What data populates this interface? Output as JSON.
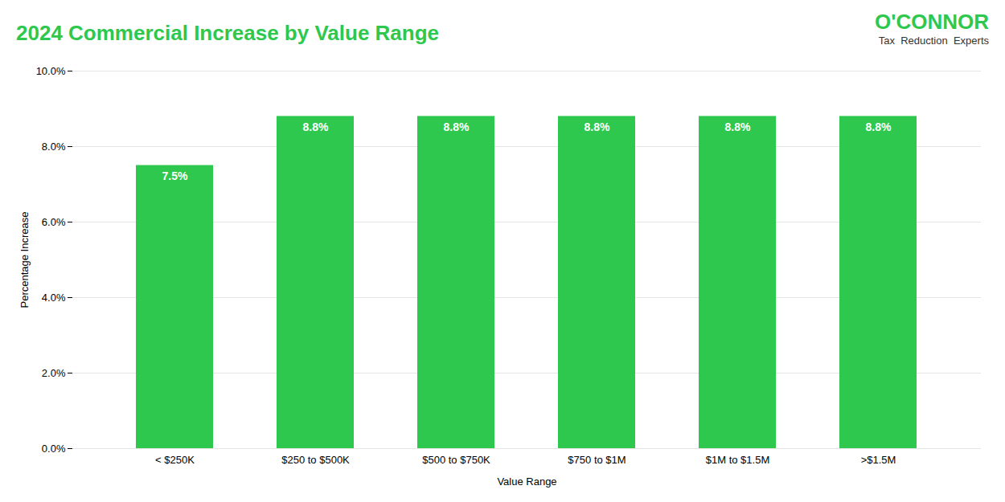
{
  "chart_data": {
    "type": "bar",
    "title": "2024 Commercial Increase by Value Range",
    "xlabel": "Value Range",
    "ylabel": "Percentage Increase",
    "annotations": [
      "O'CONNOR",
      "Tax  Reduction  Experts"
    ],
    "categories": [
      "< $250K",
      "$250 to $500K",
      "$500 to $750K",
      "$750 to $1M",
      "$1M to $1.5M",
      ">$1.5M"
    ],
    "values": [
      7.5,
      8.8,
      8.8,
      8.8,
      8.8,
      8.8
    ],
    "value_labels": [
      "7.5%",
      "8.8%",
      "8.8%",
      "8.8%",
      "8.8%",
      "8.8%"
    ],
    "data_labels": true,
    "color": "#2dc84d",
    "ylim": [
      0,
      10.0
    ],
    "yticks": [
      {
        "value": 0.0,
        "label": "0.0%"
      },
      {
        "value": 2.0,
        "label": "2.0%"
      },
      {
        "value": 4.0,
        "label": "4.0%"
      },
      {
        "value": 6.0,
        "label": "6.0%"
      },
      {
        "value": 8.0,
        "label": "8.0%"
      },
      {
        "value": 10.0,
        "label": "10.0%"
      }
    ],
    "grid": true
  }
}
